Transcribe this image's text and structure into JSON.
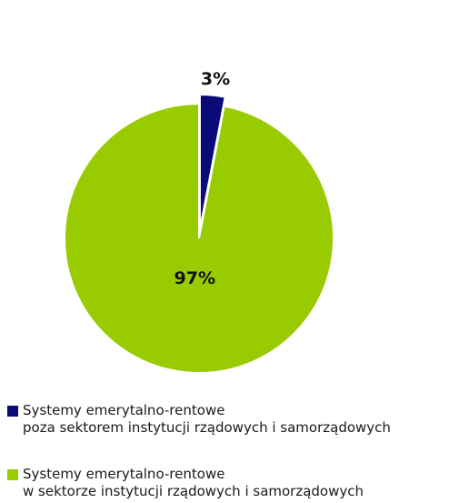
{
  "chart_data": {
    "type": "pie",
    "slices": [
      {
        "label_line1": "Systemy emerytalno-rentowe",
        "label_line2": "poza sektorem instytucji rządowych i samorządowych",
        "value": 3,
        "value_label": "3%",
        "color": "#0a0a78",
        "exploded": true
      },
      {
        "label_line1": "Systemy emerytalno-rentowe",
        "label_line2": "w sektorze instytucji rządowych i samorządowych",
        "value": 97,
        "value_label": "97%",
        "color": "#99cc00",
        "exploded": false
      }
    ],
    "legend_position": "bottom"
  }
}
